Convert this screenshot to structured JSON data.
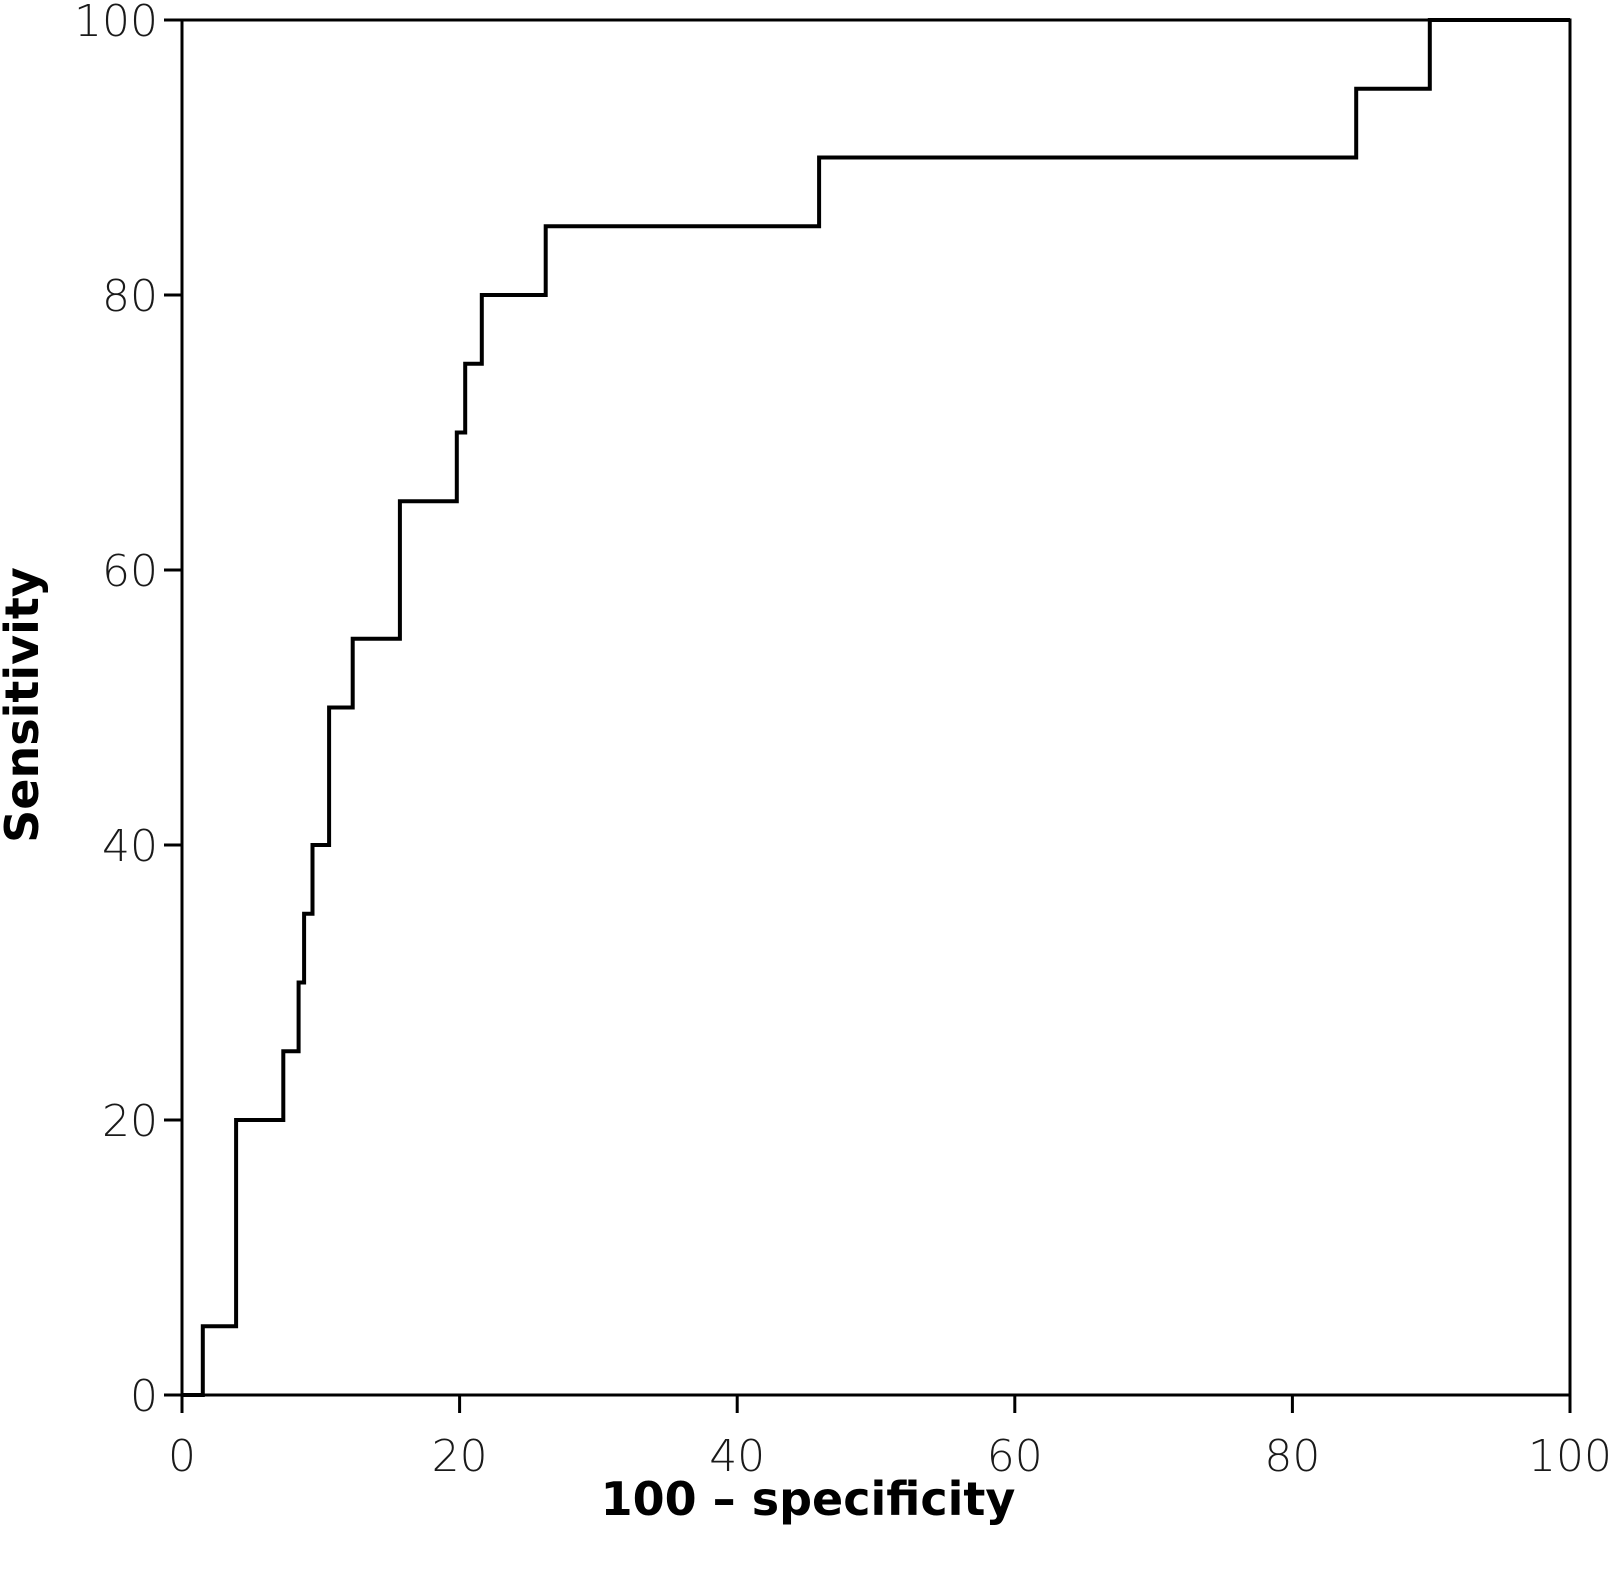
{
  "chart_data": {
    "type": "line",
    "step": true,
    "xlabel": "100 – specificity",
    "ylabel": "Sensitivity",
    "xlim": [
      0,
      100
    ],
    "ylim": [
      0,
      100
    ],
    "xticks": [
      0,
      20,
      40,
      60,
      80,
      100
    ],
    "yticks": [
      0,
      20,
      40,
      60,
      80,
      100
    ],
    "grid": false,
    "line_color": "#000000",
    "series": [
      {
        "x": [
          0,
          1.5,
          1.5,
          3.9,
          3.9,
          7.3,
          7.3,
          8.4,
          8.4,
          8.8,
          8.8,
          9.4,
          9.4,
          10.6,
          10.6,
          12.3,
          12.3,
          15.7,
          15.7,
          19.8,
          19.8,
          20.4,
          20.4,
          21.6,
          21.6,
          26.2,
          26.2,
          45.9,
          45.9,
          84.6,
          84.6,
          89.9,
          89.9,
          100
        ],
        "y": [
          0,
          0,
          5,
          5,
          20,
          20,
          25,
          25,
          30,
          30,
          35,
          35,
          40,
          40,
          50,
          50,
          55,
          55,
          65,
          65,
          70,
          70,
          75,
          75,
          80,
          80,
          85,
          85,
          90,
          90,
          95,
          95,
          100,
          100
        ]
      }
    ]
  }
}
